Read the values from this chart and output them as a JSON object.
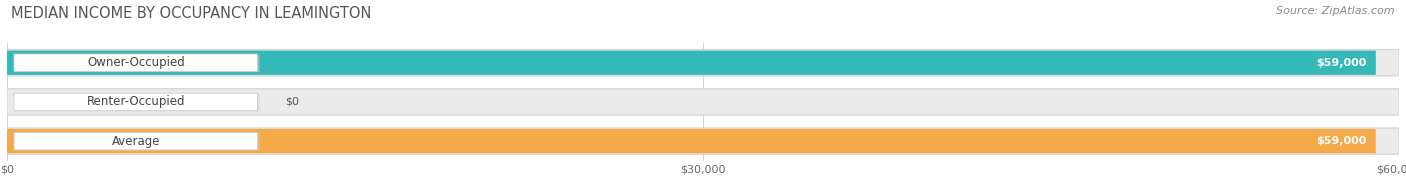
{
  "title": "MEDIAN INCOME BY OCCUPANCY IN LEAMINGTON",
  "source": "Source: ZipAtlas.com",
  "categories": [
    "Owner-Occupied",
    "Renter-Occupied",
    "Average"
  ],
  "values": [
    59000,
    0,
    59000
  ],
  "bar_colors": [
    "#35b8b8",
    "#c4aed0",
    "#f5aa4a"
  ],
  "value_labels": [
    "$59,000",
    "$0",
    "$59,000"
  ],
  "xlim": [
    0,
    60000
  ],
  "xtick_values": [
    0,
    30000,
    60000
  ],
  "xtick_labels": [
    "$0",
    "$30,000",
    "$60,000"
  ],
  "bar_height": 0.62,
  "background_color": "#ffffff",
  "bar_bg_color": "#ebebeb",
  "bar_border_color": "#d8d8d8",
  "title_fontsize": 10.5,
  "source_fontsize": 8,
  "label_fontsize": 8.5,
  "value_fontsize": 8
}
